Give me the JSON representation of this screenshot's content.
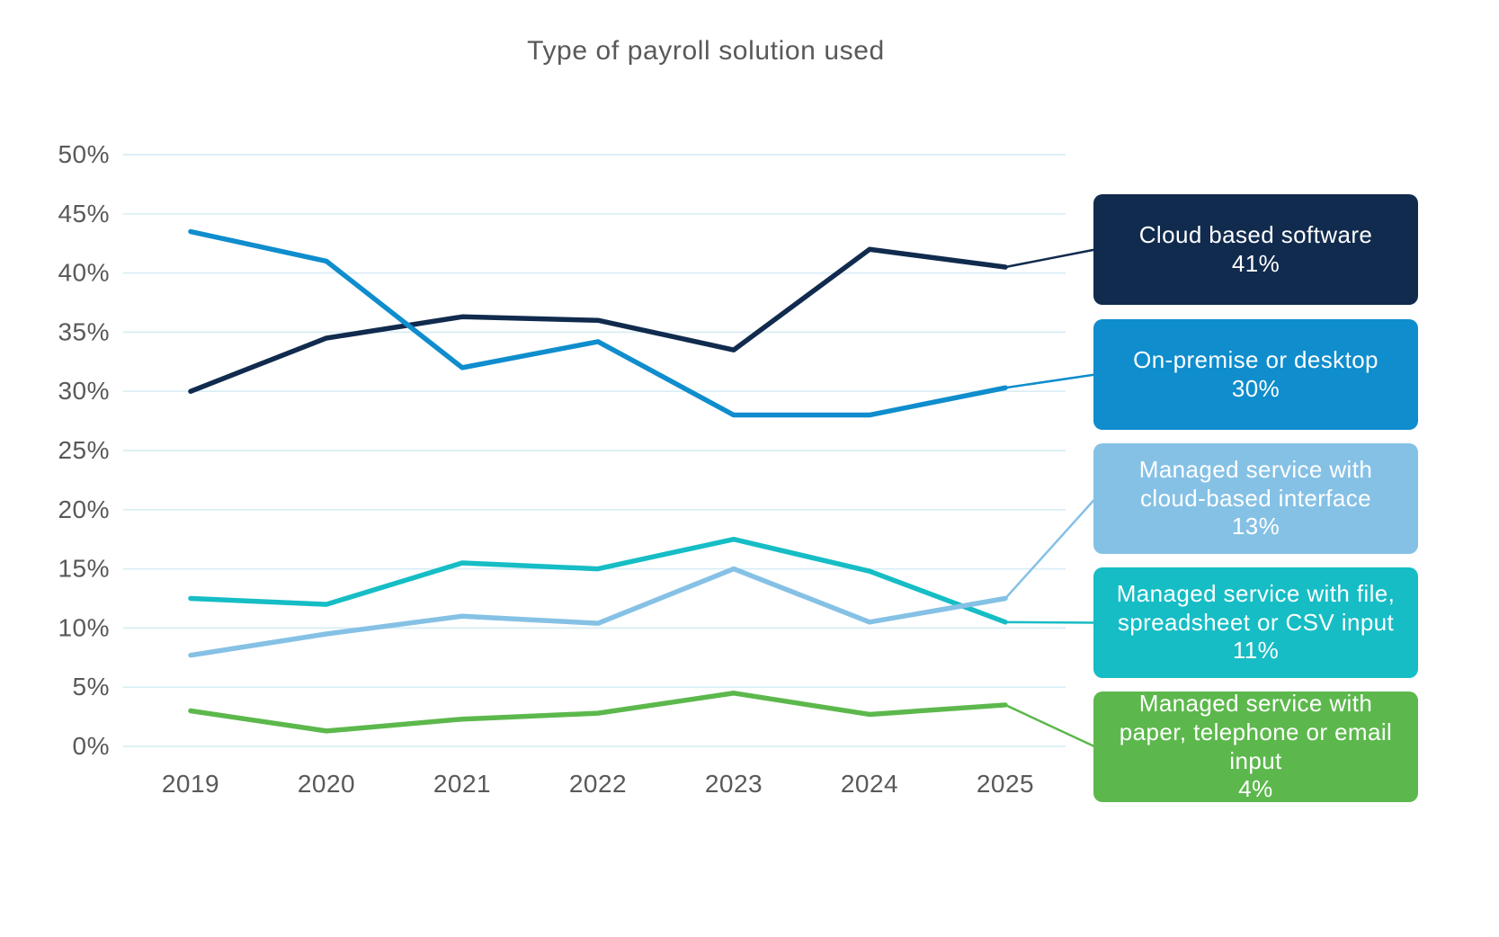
{
  "title": "Type of payroll solution used",
  "colors": {
    "background": "#FFFFFF",
    "gridline": "#D8EEF5",
    "axis_text": "#58595B",
    "title_text": "#58595B",
    "legend_text": "#FFFFFF"
  },
  "chart_data": {
    "type": "line",
    "title": "Type of payroll solution used",
    "categories": [
      "2019",
      "2020",
      "2021",
      "2022",
      "2023",
      "2024",
      "2025"
    ],
    "y_ticks": [
      0,
      5,
      10,
      15,
      20,
      25,
      30,
      35,
      40,
      45,
      50
    ],
    "y_tick_suffix": "%",
    "ylim": [
      0,
      50
    ],
    "grid": "horizontal-only",
    "legend_position": "right",
    "series": [
      {
        "name": "Cloud based software",
        "legend_value": "41%",
        "color": "#112B4E",
        "values": [
          30,
          34.5,
          36.3,
          36,
          33.5,
          42,
          40.5
        ]
      },
      {
        "name": "On-premise or desktop",
        "legend_value": "30%",
        "color": "#0F8DCD",
        "values": [
          43.5,
          41,
          32,
          34.2,
          28,
          28,
          30.3
        ]
      },
      {
        "name": "Managed service with cloud-based interface",
        "legend_value": "13%",
        "color": "#85C1E5",
        "values": [
          7.7,
          9.5,
          11,
          10.4,
          15,
          10.5,
          12.5
        ]
      },
      {
        "name": "Managed service with file, spreadsheet or CSV input",
        "legend_value": "11%",
        "color": "#16BDC5",
        "values": [
          12.5,
          12,
          15.5,
          15,
          17.5,
          14.8,
          10.5
        ]
      },
      {
        "name": "Managed service with paper, telephone or email input",
        "legend_value": "4%",
        "color": "#5CB84C",
        "values": [
          3,
          1.3,
          2.3,
          2.8,
          4.5,
          2.7,
          3.5
        ]
      }
    ]
  }
}
